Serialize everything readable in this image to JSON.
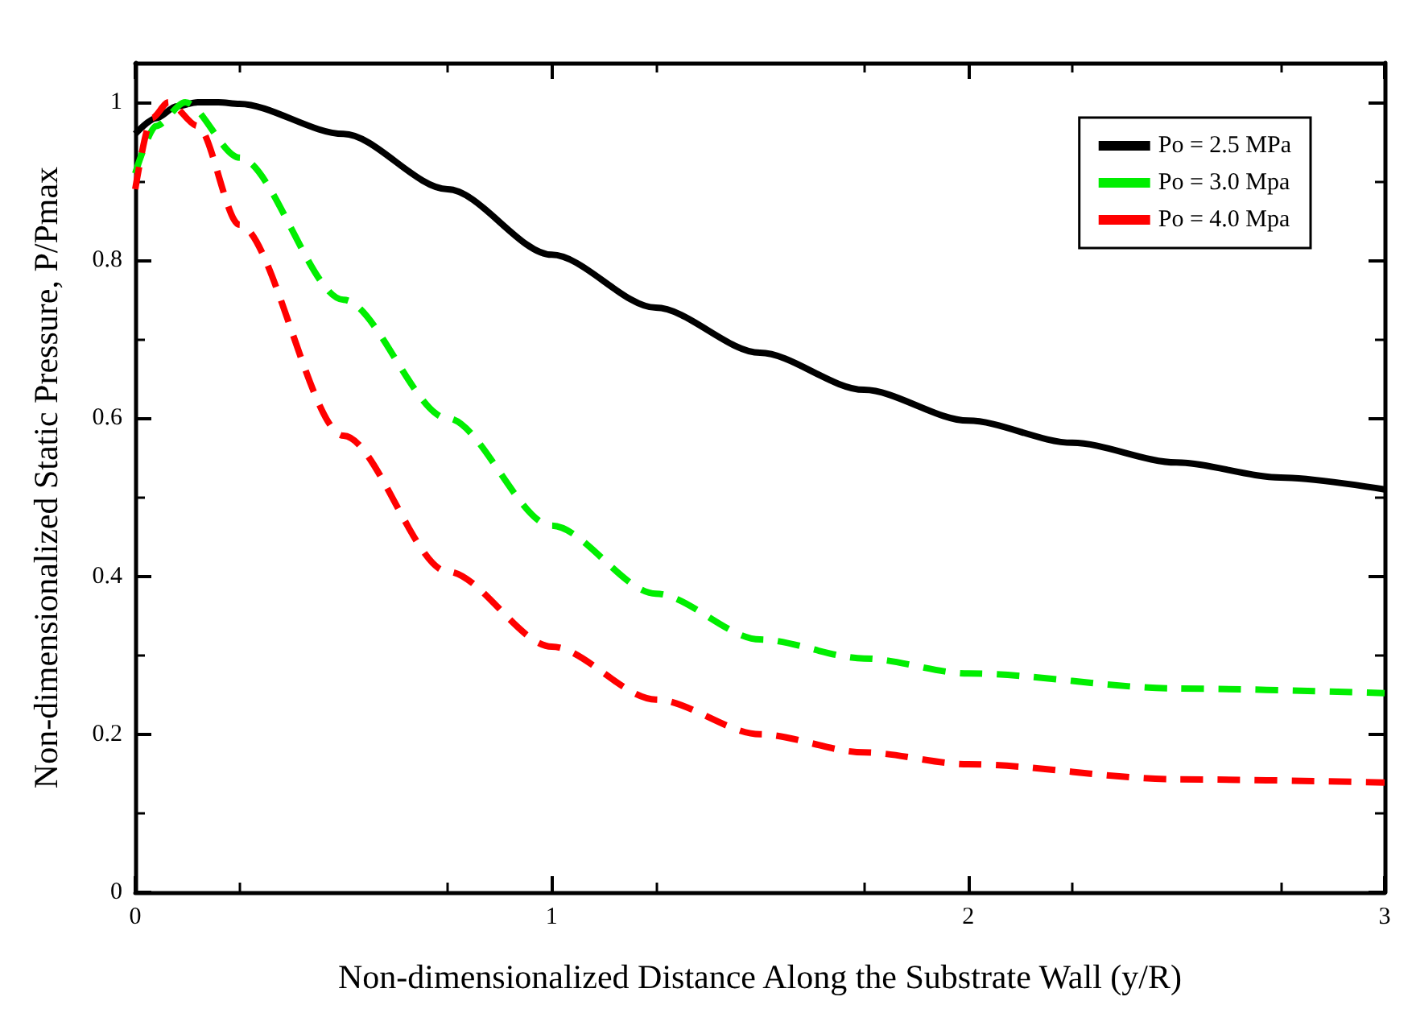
{
  "chart_data": {
    "type": "line",
    "xlabel": "Non-dimensionalized Distance Along the Substrate Wall (y/R)",
    "ylabel": "Non-dimensionalized Static Pressure, P/Pmax",
    "xlim": [
      0,
      3
    ],
    "xticks": [
      0,
      1,
      2,
      3
    ],
    "ylim": [
      0,
      1.05
    ],
    "yticks": [
      0,
      0.2,
      0.4,
      0.6,
      0.8,
      1
    ],
    "grid": false,
    "legend": "top right",
    "marker": "none",
    "series": [
      {
        "name": "Po = 2.5 MPa",
        "color": "#000000",
        "line_style": "solid",
        "x": [
          0,
          0.05,
          0.1,
          0.15,
          0.2,
          0.25,
          0.5,
          0.75,
          1,
          1.25,
          1.5,
          1.75,
          2,
          2.25,
          2.5,
          2.75,
          3
        ],
        "values": [
          0.96,
          0.98,
          0.995,
          1.0,
          1.0,
          0.998,
          0.96,
          0.89,
          0.807,
          0.74,
          0.683,
          0.636,
          0.597,
          0.569,
          0.544,
          0.525,
          0.51
        ]
      },
      {
        "name": "Po = 3.0 Mpa",
        "color": "#00ee00",
        "line_style": "dashed",
        "x": [
          0,
          0.05,
          0.12,
          0.25,
          0.5,
          0.75,
          1,
          1.25,
          1.5,
          1.75,
          2,
          2.5,
          3
        ],
        "values": [
          0.91,
          0.97,
          1.0,
          0.93,
          0.75,
          0.6,
          0.464,
          0.378,
          0.32,
          0.296,
          0.277,
          0.258,
          0.252
        ]
      },
      {
        "name": "Po = 4.0 Mpa",
        "color": "#ff0000",
        "line_style": "dashed",
        "x": [
          0,
          0.04,
          0.08,
          0.15,
          0.25,
          0.5,
          0.75,
          1,
          1.25,
          1.5,
          1.75,
          2,
          2.5,
          3
        ],
        "values": [
          0.89,
          0.98,
          1.0,
          0.97,
          0.845,
          0.578,
          0.406,
          0.311,
          0.244,
          0.2,
          0.177,
          0.162,
          0.143,
          0.139
        ]
      }
    ]
  }
}
